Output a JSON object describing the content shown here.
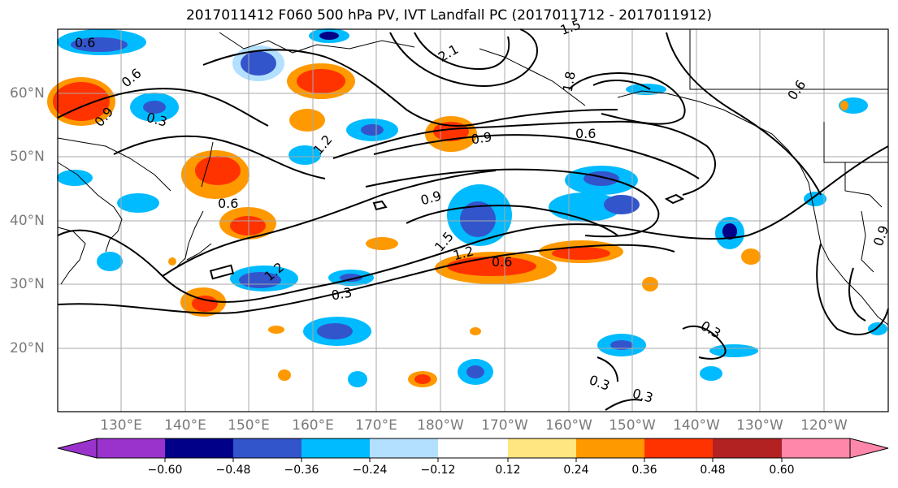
{
  "title": "2017011412 F060 500 hPa PV, IVT Landfall PC (2017011712 - 2017011912)",
  "map": {
    "projection": "cylindrical",
    "lon_range": [
      120,
      252
    ],
    "lat_range": [
      10,
      70
    ],
    "lat_ticks": [
      {
        "value": 20,
        "label": "20°N"
      },
      {
        "value": 30,
        "label": "30°N"
      },
      {
        "value": 40,
        "label": "40°N"
      },
      {
        "value": 50,
        "label": "50°N"
      },
      {
        "value": 60,
        "label": "60°N"
      }
    ],
    "lon_ticks": [
      {
        "value": 130,
        "label": "130°E"
      },
      {
        "value": 140,
        "label": "140°E"
      },
      {
        "value": 150,
        "label": "150°E"
      },
      {
        "value": 160,
        "label": "160°E"
      },
      {
        "value": 170,
        "label": "170°E"
      },
      {
        "value": 180,
        "label": "180°W"
      },
      {
        "value": 190,
        "label": "170°W"
      },
      {
        "value": 200,
        "label": "160°W"
      },
      {
        "value": 210,
        "label": "150°W"
      },
      {
        "value": 220,
        "label": "140°W"
      },
      {
        "value": 230,
        "label": "130°W"
      },
      {
        "value": 240,
        "label": "120°W"
      }
    ],
    "contour_labels": [
      "0.6",
      "0.6",
      "0.9",
      "0.3",
      "1.2",
      "0.9",
      "0.6",
      "0.6",
      "0.9",
      "1.5",
      "1.2",
      "0.6",
      "1.2",
      "0.3",
      "1.8",
      "1.5",
      "2.1",
      "0.6",
      "0.3",
      "0.3",
      "0.3",
      "0.9"
    ]
  },
  "colorbar": {
    "colors": [
      "#9933cc",
      "#000088",
      "#3355cc",
      "#00bbff",
      "#b3e0ff",
      "#ffffff",
      "#ffe680",
      "#ff9900",
      "#ff3300",
      "#b22222",
      "#ff88aa"
    ],
    "ticks": [
      "−0.60",
      "−0.48",
      "−0.36",
      "−0.24",
      "−0.12",
      "0.12",
      "0.24",
      "0.36",
      "0.48",
      "0.60"
    ]
  }
}
